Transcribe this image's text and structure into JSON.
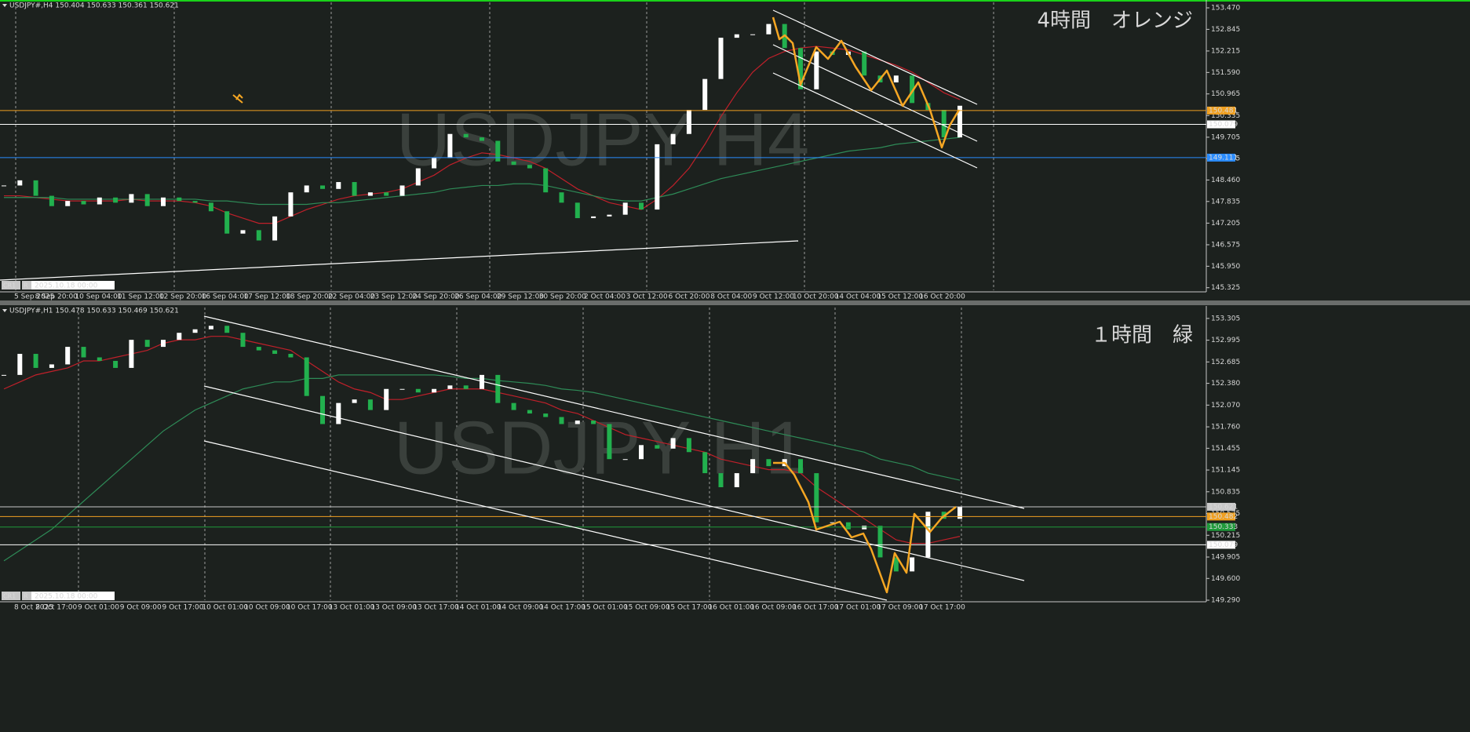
{
  "panes": [
    {
      "header": "USDJPY#,H4  150.404 150.633 150.361 150.621",
      "watermark": "USDJPY H4",
      "note": "4時間　オレンジ",
      "note_color": "#f39c12",
      "date_badge": "2025.10.18 00:00",
      "badges": [
        "CR1",
        "R"
      ],
      "up_color": "#ffffff",
      "down_color": "#22b04e",
      "ylim": [
        145.25,
        153.63
      ],
      "yticks": [
        {
          "value": 153.47,
          "label": "153.470"
        },
        {
          "value": 152.845,
          "label": "152.845"
        },
        {
          "value": 152.215,
          "label": "152.215"
        },
        {
          "value": 151.59,
          "label": "151.590"
        },
        {
          "value": 150.965,
          "label": "150.965"
        },
        {
          "value": 150.335,
          "label": "150.335"
        },
        {
          "value": 149.705,
          "label": "149.705"
        },
        {
          "value": 149.085,
          "label": "149.085"
        },
        {
          "value": 148.46,
          "label": "148.460"
        },
        {
          "value": 147.835,
          "label": "147.835"
        },
        {
          "value": 147.205,
          "label": "147.205"
        },
        {
          "value": 146.575,
          "label": "146.575"
        },
        {
          "value": 145.95,
          "label": "145.950"
        },
        {
          "value": 145.325,
          "label": "145.325"
        }
      ],
      "xlabels": [
        "5 Sep 2025",
        "8 Sep 20:00",
        "10 Sep 04:00",
        "11 Sep 12:00",
        "12 Sep 20:00",
        "16 Sep 04:00",
        "17 Sep 12:00",
        "18 Sep 20:00",
        "22 Sep 04:00",
        "23 Sep 12:00",
        "24 Sep 20:00",
        "26 Sep 04:00",
        "29 Sep 12:00",
        "30 Sep 20:00",
        "2 Oct 04:00",
        "3 Oct 12:00",
        "6 Oct 20:00",
        "8 Oct 04:00",
        "9 Oct 12:00",
        "10 Oct 20:00",
        "14 Oct 04:00",
        "15 Oct 12:00",
        "16 Oct 20:00"
      ],
      "closes": [
        148.3,
        148.45,
        148.0,
        147.7,
        147.85,
        147.75,
        147.95,
        147.8,
        148.05,
        147.7,
        147.95,
        147.85,
        147.8,
        147.55,
        146.9,
        147.0,
        146.7,
        147.4,
        148.1,
        148.3,
        148.2,
        148.4,
        148.0,
        148.1,
        148.0,
        148.3,
        148.8,
        149.1,
        149.8,
        149.7,
        149.6,
        149.0,
        148.9,
        148.8,
        148.1,
        147.8,
        147.35,
        147.4,
        147.45,
        147.8,
        147.6,
        149.5,
        149.8,
        150.5,
        151.4,
        152.6,
        152.7,
        152.7,
        153.0,
        152.3,
        151.1,
        152.2,
        152.1,
        152.2,
        151.5,
        151.3,
        151.5,
        150.7,
        150.5,
        149.7,
        150.621
      ],
      "ma": [
        {
          "color": "#c0202a",
          "values": [
            148.0,
            148.0,
            147.95,
            147.9,
            147.85,
            147.85,
            147.85,
            147.85,
            147.9,
            147.85,
            147.85,
            147.85,
            147.8,
            147.7,
            147.5,
            147.35,
            147.2,
            147.2,
            147.4,
            147.6,
            147.75,
            147.9,
            148.0,
            148.05,
            148.1,
            148.2,
            148.4,
            148.6,
            148.9,
            149.1,
            149.25,
            149.2,
            149.1,
            149.0,
            148.8,
            148.5,
            148.2,
            148.0,
            147.8,
            147.7,
            147.6,
            147.9,
            148.3,
            148.8,
            149.5,
            150.3,
            151.0,
            151.6,
            152.0,
            152.2,
            152.3,
            152.35,
            152.3,
            152.25,
            152.1,
            151.95,
            151.8,
            151.6,
            151.3,
            151.0,
            150.8
          ]
        },
        {
          "color": "#2e8b57",
          "values": [
            147.95,
            147.95,
            147.95,
            147.95,
            147.9,
            147.9,
            147.9,
            147.9,
            147.9,
            147.9,
            147.9,
            147.9,
            147.9,
            147.85,
            147.85,
            147.8,
            147.75,
            147.75,
            147.75,
            147.75,
            147.8,
            147.8,
            147.85,
            147.9,
            147.95,
            148.0,
            148.05,
            148.1,
            148.2,
            148.25,
            148.3,
            148.3,
            148.35,
            148.35,
            148.3,
            148.2,
            148.1,
            148.0,
            147.9,
            147.85,
            147.85,
            147.95,
            148.05,
            148.2,
            148.35,
            148.5,
            148.6,
            148.7,
            148.8,
            148.9,
            149.0,
            149.1,
            149.2,
            149.3,
            149.35,
            149.4,
            149.5,
            149.55,
            149.6,
            149.65,
            149.7
          ]
        }
      ],
      "levels": [
        {
          "value": 150.481,
          "color": "#f0a020"
        },
        {
          "value": 150.079,
          "color": "#ffffff"
        },
        {
          "value": 149.111,
          "color": "#2a8cff"
        }
      ]
    },
    {
      "header": "USDJPY#,H1  150.478 150.633 150.469 150.621",
      "watermark": "USDJPY H1",
      "note": "１時間　緑",
      "note_color": "#1e9a3a",
      "date_badge": "2025.10.18 00:00",
      "badges": [
        "CR1",
        "R"
      ],
      "up_color": "#ffffff",
      "down_color": "#22b04e",
      "ylim": [
        149.29,
        153.46
      ],
      "yticks": [
        {
          "value": 153.305,
          "label": "153.305"
        },
        {
          "value": 152.995,
          "label": "152.995"
        },
        {
          "value": 152.685,
          "label": "152.685"
        },
        {
          "value": 152.38,
          "label": "152.380"
        },
        {
          "value": 152.07,
          "label": "152.070"
        },
        {
          "value": 151.76,
          "label": "151.760"
        },
        {
          "value": 151.455,
          "label": "151.455"
        },
        {
          "value": 151.145,
          "label": "151.145"
        },
        {
          "value": 150.835,
          "label": "150.835"
        },
        {
          "value": 150.525,
          "label": "150.525"
        },
        {
          "value": 150.215,
          "label": "150.215"
        },
        {
          "value": 149.905,
          "label": "149.905"
        },
        {
          "value": 149.6,
          "label": "149.600"
        },
        {
          "value": 149.29,
          "label": "149.290"
        }
      ],
      "xlabels": [
        "8 Oct 2025",
        "8 Oct 17:00",
        "9 Oct 01:00",
        "9 Oct 09:00",
        "9 Oct 17:00",
        "10 Oct 01:00",
        "10 Oct 09:00",
        "10 Oct 17:00",
        "13 Oct 01:00",
        "13 Oct 09:00",
        "13 Oct 17:00",
        "14 Oct 01:00",
        "14 Oct 09:00",
        "14 Oct 17:00",
        "15 Oct 01:00",
        "15 Oct 09:00",
        "15 Oct 17:00",
        "16 Oct 01:00",
        "16 Oct 09:00",
        "16 Oct 17:00",
        "17 Oct 01:00",
        "17 Oct 09:00",
        "17 Oct 17:00"
      ],
      "closes": [
        152.5,
        152.8,
        152.6,
        152.65,
        152.9,
        152.75,
        152.7,
        152.6,
        153.0,
        152.9,
        153.0,
        153.1,
        153.15,
        153.2,
        153.1,
        152.9,
        152.85,
        152.8,
        152.75,
        152.2,
        151.8,
        152.1,
        152.15,
        152.0,
        152.3,
        152.3,
        152.25,
        152.3,
        152.35,
        152.3,
        152.5,
        152.1,
        152.0,
        151.95,
        151.9,
        151.8,
        151.85,
        151.8,
        151.3,
        151.3,
        151.5,
        151.45,
        151.6,
        151.4,
        151.1,
        150.9,
        151.1,
        151.3,
        151.2,
        151.3,
        151.1,
        150.4,
        150.4,
        150.3,
        150.35,
        149.9,
        149.7,
        149.9,
        150.55,
        150.45,
        150.621
      ],
      "ma": [
        {
          "color": "#c0202a",
          "values": [
            152.3,
            152.4,
            152.5,
            152.55,
            152.6,
            152.7,
            152.7,
            152.75,
            152.8,
            152.85,
            152.95,
            153.0,
            153.0,
            153.05,
            153.05,
            153.0,
            152.95,
            152.9,
            152.85,
            152.7,
            152.55,
            152.4,
            152.3,
            152.25,
            152.15,
            152.15,
            152.2,
            152.25,
            152.3,
            152.3,
            152.3,
            152.25,
            152.2,
            152.15,
            152.1,
            152.0,
            151.95,
            151.85,
            151.75,
            151.65,
            151.6,
            151.55,
            151.5,
            151.45,
            151.4,
            151.3,
            151.25,
            151.2,
            151.15,
            151.15,
            151.1,
            150.9,
            150.75,
            150.6,
            150.45,
            150.3,
            150.15,
            150.1,
            150.1,
            150.15,
            150.2
          ]
        },
        {
          "color": "#2e8b57",
          "values": [
            149.85,
            150.0,
            150.15,
            150.3,
            150.5,
            150.7,
            150.9,
            151.1,
            151.3,
            151.5,
            151.7,
            151.85,
            152.0,
            152.1,
            152.2,
            152.3,
            152.35,
            152.4,
            152.4,
            152.45,
            152.45,
            152.5,
            152.5,
            152.5,
            152.5,
            152.5,
            152.5,
            152.5,
            152.48,
            152.45,
            152.45,
            152.42,
            152.4,
            152.38,
            152.35,
            152.3,
            152.28,
            152.25,
            152.2,
            152.15,
            152.1,
            152.05,
            152.0,
            151.95,
            151.9,
            151.85,
            151.8,
            151.75,
            151.7,
            151.65,
            151.6,
            151.55,
            151.5,
            151.45,
            151.4,
            151.3,
            151.25,
            151.2,
            151.1,
            151.05,
            151.0
          ]
        }
      ],
      "levels": [
        {
          "value": 150.621,
          "color": "#c8c8c8"
        },
        {
          "value": 150.482,
          "color": "#f0a020"
        },
        {
          "value": 150.333,
          "color": "#1e9a3a"
        },
        {
          "value": 150.079,
          "color": "#ffffff"
        }
      ]
    }
  ]
}
